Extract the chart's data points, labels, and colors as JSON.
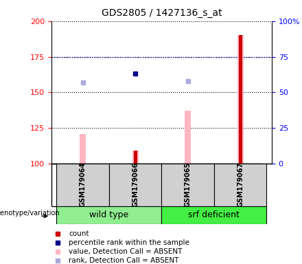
{
  "title": "GDS2805 / 1427136_s_at",
  "samples": [
    "GSM179064",
    "GSM179066",
    "GSM179065",
    "GSM179067"
  ],
  "group_wt": "wild type",
  "group_srf": "srf deficient",
  "group_wt_color": "#90EE90",
  "group_srf_color": "#44EE44",
  "ylim_left": [
    100,
    200
  ],
  "ylim_right": [
    0,
    100
  ],
  "yticks_left": [
    100,
    125,
    150,
    175,
    200
  ],
  "yticks_right": [
    0,
    25,
    50,
    75,
    100
  ],
  "ytick_labels_right": [
    "0",
    "25",
    "50",
    "75",
    "100%"
  ],
  "count_values": [
    null,
    109,
    null,
    190
  ],
  "count_color": "#CC0000",
  "count_bar_width": 0.12,
  "pink_bar_values": [
    121,
    109,
    137,
    190
  ],
  "pink_bar_color": "#FFB6C1",
  "pink_bar_width": 0.12,
  "blue_square_values": [
    null,
    163,
    null,
    null
  ],
  "blue_square_color": "#00008B",
  "light_blue_square_values": [
    157,
    null,
    158,
    null
  ],
  "light_blue_square_color": "#AAAADD",
  "blue_hline_value": 175,
  "blue_hline_color": "#0000BB",
  "sample_box_color": "#D0D0D0",
  "legend_items": [
    {
      "label": "count",
      "color": "#CC0000"
    },
    {
      "label": "percentile rank within the sample",
      "color": "#00008B"
    },
    {
      "label": "value, Detection Call = ABSENT",
      "color": "#FFB6C1"
    },
    {
      "label": "rank, Detection Call = ABSENT",
      "color": "#AAAADD"
    }
  ]
}
